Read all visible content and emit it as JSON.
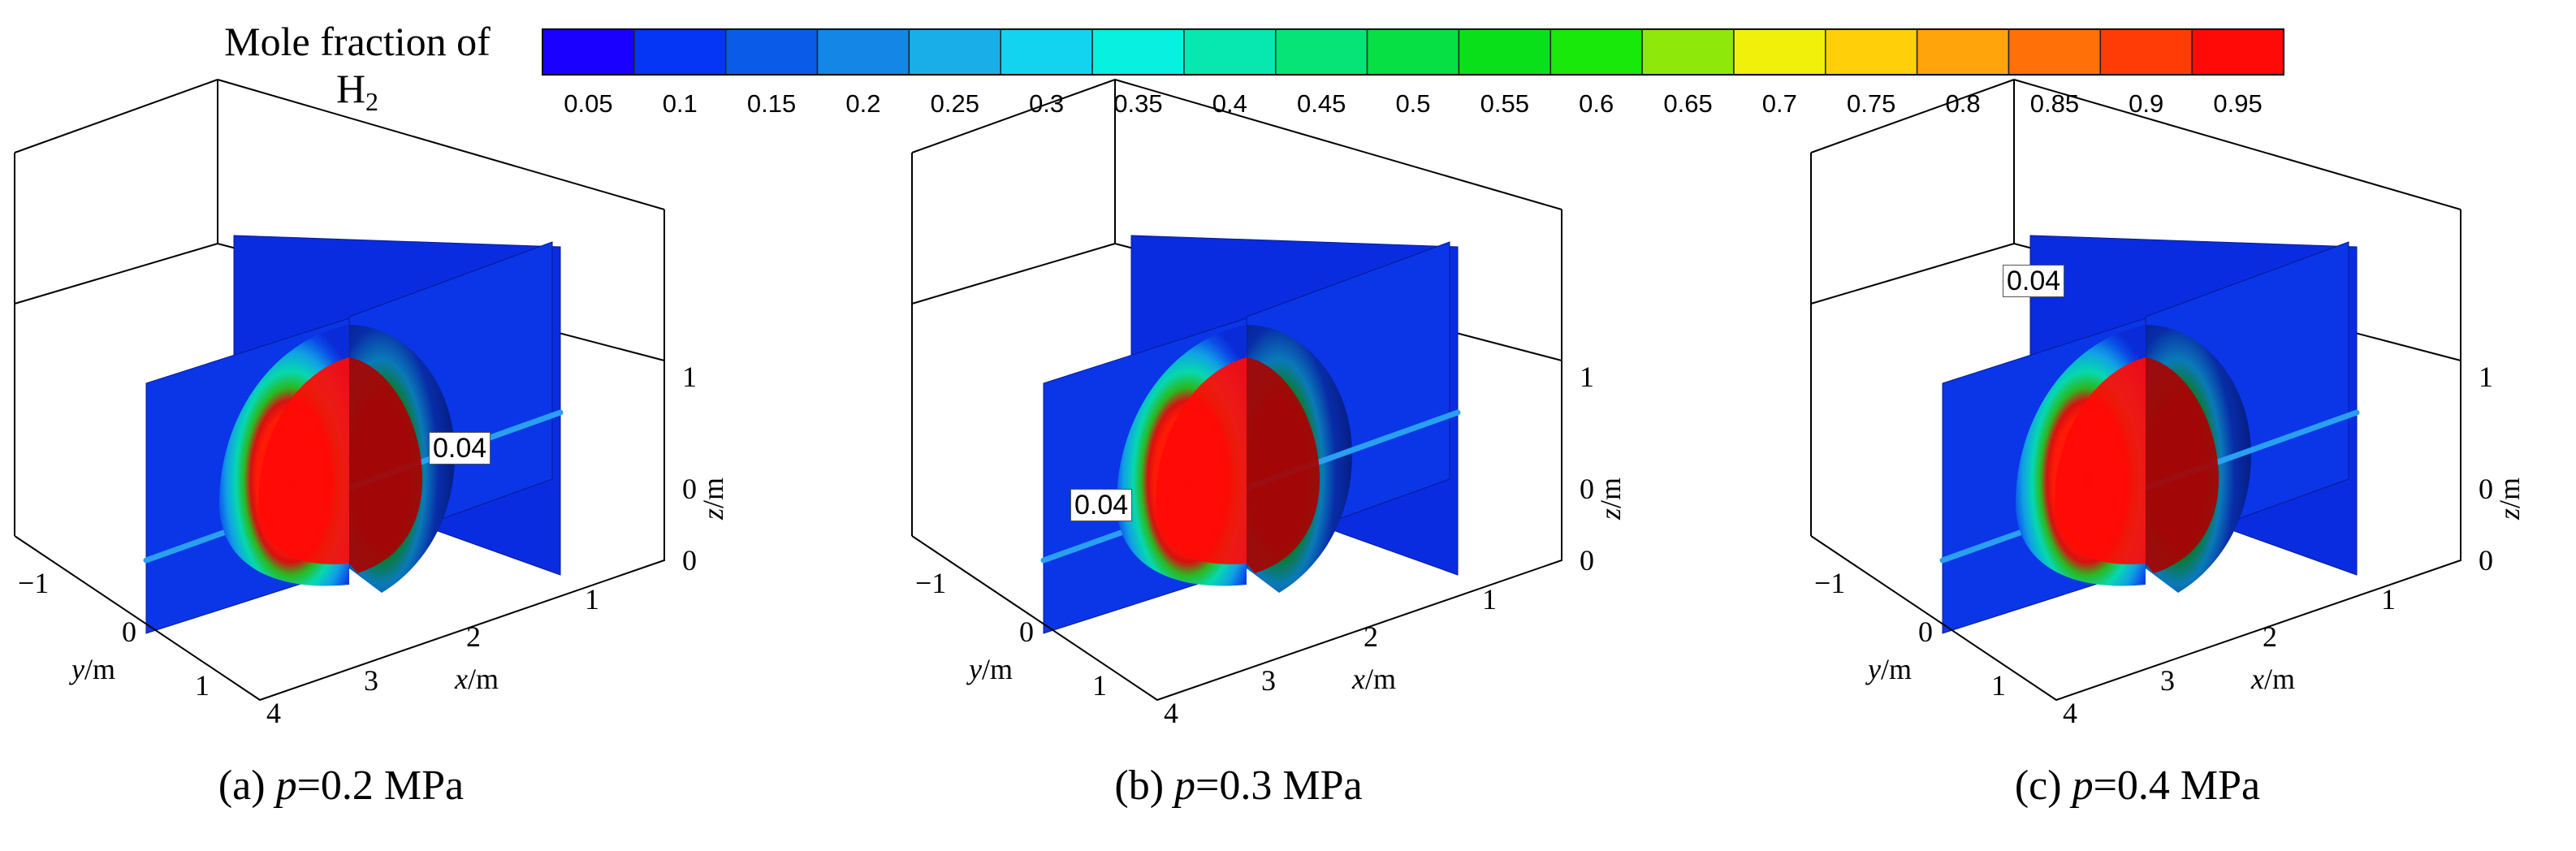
{
  "chart_data": {
    "type": "heatmap",
    "colorbar": {
      "title": "Mole fraction of",
      "title_species": "H",
      "title_subscript": "2",
      "ticks": [
        "0.05",
        "0.1",
        "0.15",
        "0.2",
        "0.25",
        "0.3",
        "0.35",
        "0.4",
        "0.45",
        "0.5",
        "0.55",
        "0.6",
        "0.65",
        "0.7",
        "0.75",
        "0.8",
        "0.85",
        "0.9",
        "0.95"
      ],
      "colors": [
        "#1a00ff",
        "#0535f5",
        "#0a5ce8",
        "#1486e6",
        "#1aaee8",
        "#12d4f0",
        "#08f0e0",
        "#06e8b0",
        "#06e478",
        "#06e045",
        "#0ae01a",
        "#18e80a",
        "#8ee80a",
        "#f0f00a",
        "#ffd00a",
        "#ffa40a",
        "#ff7008",
        "#ff3c06",
        "#ff0a06"
      ]
    },
    "panels": [
      {
        "caption_prefix": "(a) ",
        "caption_var": "p",
        "caption_value": "=0.2 MPa",
        "contour_label": "0.04",
        "axes": {
          "x_label": "x",
          "y_label": "y",
          "z_label": "z",
          "unit": "/m",
          "x_ticks": [
            "2",
            "3",
            "4"
          ],
          "y_ticks": [
            "−1",
            "0",
            "1"
          ],
          "z_ticks": [
            "0",
            "1"
          ],
          "z_base_tick": "0"
        }
      },
      {
        "caption_prefix": "(b) ",
        "caption_var": "p",
        "caption_value": "=0.3 MPa",
        "contour_label": "0.04",
        "axes": {
          "x_label": "x",
          "y_label": "y",
          "z_label": "z",
          "unit": "/m",
          "x_ticks": [
            "2",
            "3",
            "4"
          ],
          "y_ticks": [
            "−1",
            "0",
            "1"
          ],
          "z_ticks": [
            "0",
            "1"
          ],
          "z_base_tick": "0"
        }
      },
      {
        "caption_prefix": "(c) ",
        "caption_var": "p",
        "caption_value": "=0.4 MPa",
        "contour_label": "0.04",
        "axes": {
          "x_label": "x",
          "y_label": "y",
          "z_label": "z",
          "unit": "/m",
          "x_ticks": [
            "2",
            "3",
            "4"
          ],
          "y_ticks": [
            "−1",
            "0",
            "1"
          ],
          "z_ticks": [
            "0",
            "1"
          ],
          "z_base_tick": "0"
        }
      }
    ]
  }
}
